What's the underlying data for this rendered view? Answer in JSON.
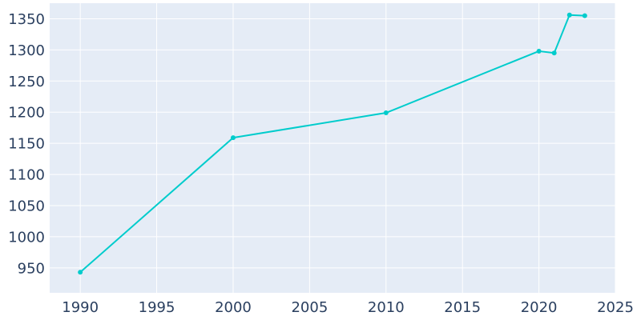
{
  "chart_data": {
    "type": "line",
    "title": "",
    "xlabel": "",
    "ylabel": "",
    "x": [
      1990,
      2000,
      2010,
      2020,
      2021,
      2022,
      2023
    ],
    "series": [
      {
        "values": [
          943,
          1159,
          1199,
          1298,
          1295,
          1356,
          1355
        ]
      }
    ],
    "xlim": [
      1988,
      2025
    ],
    "ylim": [
      910,
      1375
    ],
    "xticks": [
      1990,
      1995,
      2000,
      2005,
      2010,
      2015,
      2020,
      2025
    ],
    "yticks": [
      950,
      1000,
      1050,
      1100,
      1150,
      1200,
      1250,
      1300,
      1350
    ],
    "xtick_labels": [
      "1990",
      "1995",
      "2000",
      "2005",
      "2010",
      "2015",
      "2020",
      "2025"
    ],
    "ytick_labels": [
      "950",
      "1000",
      "1050",
      "1100",
      "1150",
      "1200",
      "1250",
      "1300",
      "1350"
    ],
    "grid": true,
    "colors": {
      "line": "#00cccc",
      "plot_bg": "#e5ecf6",
      "grid": "#ffffff",
      "text": "#2a3f5f"
    }
  }
}
